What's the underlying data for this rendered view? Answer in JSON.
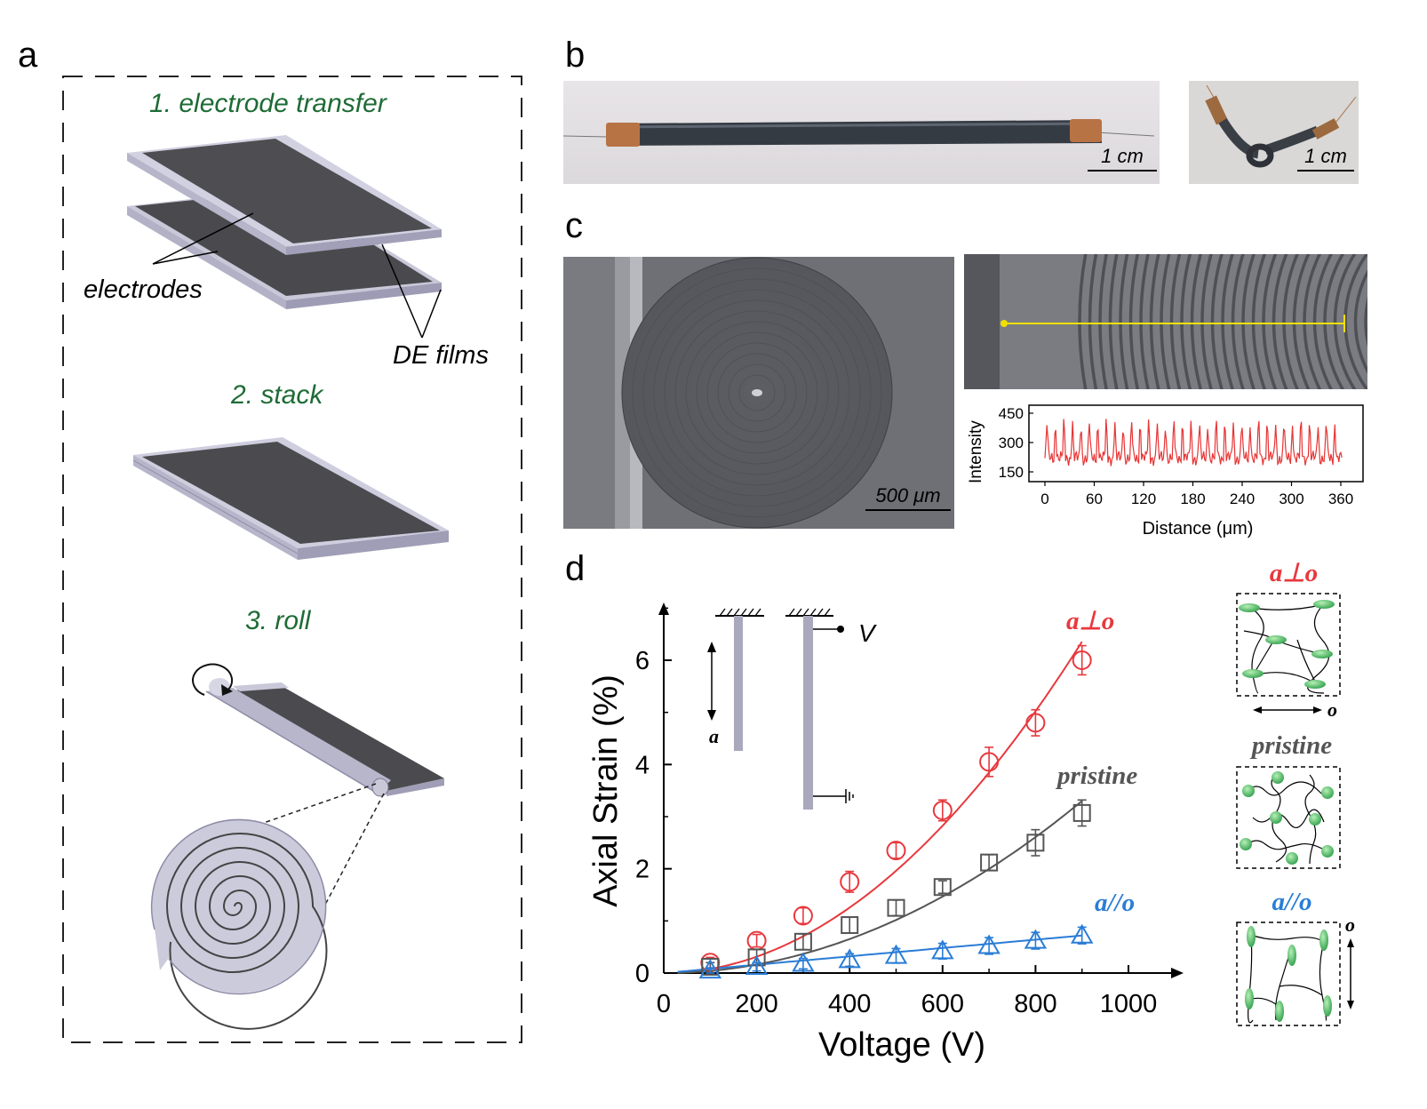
{
  "panels": {
    "a": {
      "letter": "a",
      "step1": "1. electrode transfer",
      "electrodes": "electrodes",
      "de_films": "DE films",
      "step2": "2. stack",
      "step3": "3. roll"
    },
    "b": {
      "letter": "b",
      "scale_left": "1 cm",
      "scale_right": "1 cm"
    },
    "c": {
      "letter": "c",
      "scale": "500 μm",
      "profile": {
        "ylabel": "Intensity",
        "xlabel": "Distance (μm)",
        "yticks": [
          "450",
          "300",
          "150"
        ],
        "xticks": [
          "0",
          "60",
          "120",
          "180",
          "240",
          "300",
          "360"
        ]
      }
    },
    "d": {
      "letter": "d",
      "inset_v": "V",
      "inset_a": "a",
      "sch_aperp": "a⊥o",
      "sch_pristine": "pristine",
      "sch_apar": "a//o",
      "sch_o1": "o",
      "sch_o2": "o"
    }
  },
  "colors": {
    "red": "#e8383d",
    "gray": "#555555",
    "blue": "#2a7dd6",
    "green": "#1e6b35",
    "yellow": "#f0e000"
  },
  "chart_data": {
    "type": "scatter",
    "xlabel": "Voltage (V)",
    "ylabel": "Axial Strain (%)",
    "xlim": [
      0,
      1100
    ],
    "ylim": [
      0,
      7
    ],
    "xticks": [
      0,
      200,
      400,
      600,
      800,
      1000
    ],
    "yticks": [
      0,
      2,
      4,
      6
    ],
    "series": [
      {
        "name": "a⊥o",
        "color": "#e8383d",
        "marker": "circle",
        "x": [
          100,
          200,
          300,
          400,
          500,
          600,
          700,
          800,
          900
        ],
        "y": [
          0.2,
          0.62,
          1.1,
          1.75,
          2.35,
          3.12,
          4.05,
          4.8,
          6.0
        ],
        "err": [
          0.1,
          0.12,
          0.15,
          0.2,
          0.15,
          0.2,
          0.28,
          0.25,
          0.28
        ]
      },
      {
        "name": "pristine",
        "color": "#555555",
        "marker": "square",
        "x": [
          100,
          200,
          300,
          400,
          500,
          600,
          700,
          800,
          900
        ],
        "y": [
          0.12,
          0.3,
          0.6,
          0.92,
          1.25,
          1.65,
          2.12,
          2.5,
          3.07
        ],
        "err": [
          0.08,
          0.15,
          0.15,
          0.15,
          0.15,
          0.12,
          0.15,
          0.25,
          0.25
        ]
      },
      {
        "name": "a//o",
        "color": "#2a7dd6",
        "marker": "triangle",
        "x": [
          100,
          200,
          300,
          400,
          500,
          600,
          700,
          800,
          900
        ],
        "y": [
          0.05,
          0.12,
          0.18,
          0.25,
          0.33,
          0.42,
          0.52,
          0.62,
          0.72
        ],
        "err": [
          0.05,
          0.08,
          0.1,
          0.12,
          0.14,
          0.15,
          0.16,
          0.16,
          0.16
        ]
      }
    ]
  }
}
